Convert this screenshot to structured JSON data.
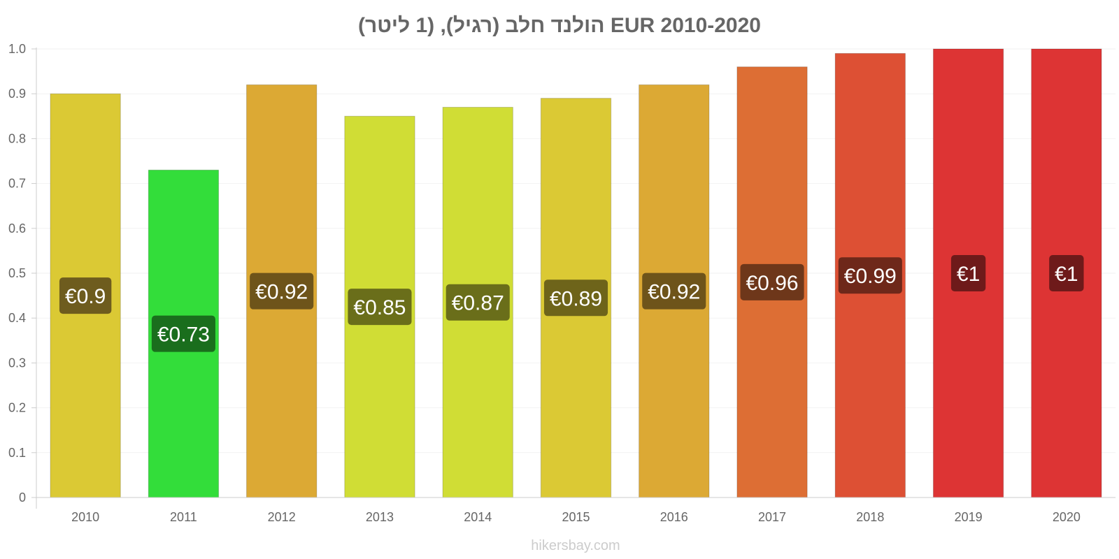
{
  "chart_data": {
    "type": "bar",
    "title": "הולנד חלב (רגיל), (1 ליטר) EUR 2010-2020",
    "xlabel": "",
    "ylabel": "",
    "ylim": [
      0,
      1.0
    ],
    "yticks": [
      0,
      0.1,
      0.2,
      0.3,
      0.4,
      0.5,
      0.6,
      0.7,
      0.8,
      0.9,
      1.0
    ],
    "ytick_labels": [
      "0",
      "0.1",
      "0.2",
      "0.3",
      "0.4",
      "0.5",
      "0.6",
      "0.7",
      "0.8",
      "0.9",
      "1.0"
    ],
    "categories": [
      "2010",
      "2011",
      "2012",
      "2013",
      "2014",
      "2015",
      "2016",
      "2017",
      "2018",
      "2019",
      "2020"
    ],
    "values": [
      0.9,
      0.73,
      0.92,
      0.85,
      0.87,
      0.89,
      0.92,
      0.96,
      0.99,
      1.0,
      1.0
    ],
    "data_labels": [
      "€0.9",
      "€0.73",
      "€0.92",
      "€0.85",
      "€0.87",
      "€0.89",
      "€0.92",
      "€0.96",
      "€0.99",
      "€1",
      "€1"
    ],
    "bar_colors": [
      "#dbc934",
      "#33dd3a",
      "#dca934",
      "#d0dd35",
      "#d0dd35",
      "#dbc934",
      "#dca934",
      "#dd6e34",
      "#dd5034",
      "#dd3434",
      "#dd3434"
    ],
    "label_colors": [
      "#6e5c1e",
      "#1a6e1d",
      "#6e541a",
      "#6a6e1a",
      "#6a6e1a",
      "#6e641a",
      "#6e541a",
      "#6e371a",
      "#6e281a",
      "#6e1a1a",
      "#6e1a1a"
    ],
    "grid": true,
    "legend": "none"
  },
  "watermark": "hikersbay.com"
}
